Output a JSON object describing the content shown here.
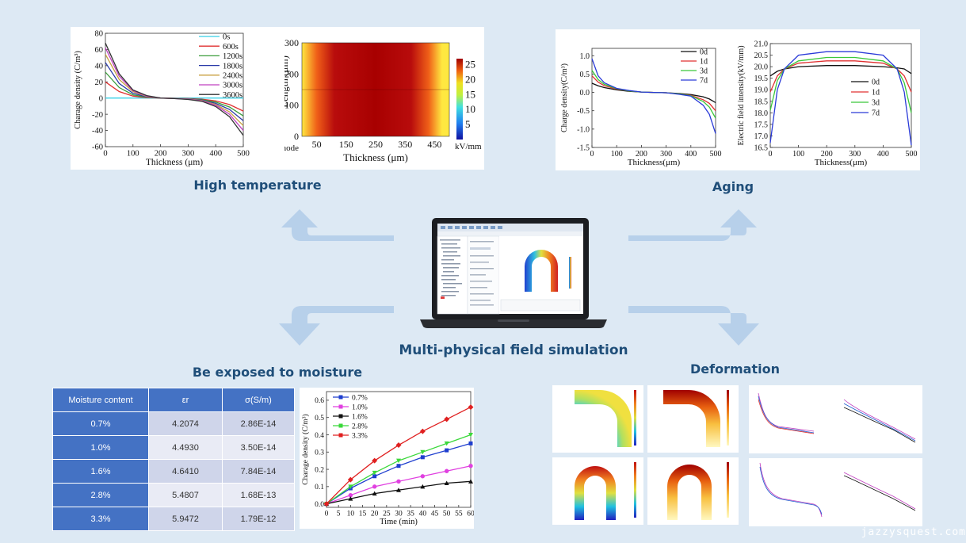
{
  "titles": {
    "high_temperature": "High temperature",
    "aging": "Aging",
    "center": "Multi-physical field simulation",
    "moisture": "Be exposed to moisture",
    "deformation": "Deformation"
  },
  "moisture_table": {
    "headers": [
      "Moisture content",
      "εr",
      "σ(S/m)"
    ],
    "rows": [
      [
        "0.7%",
        "4.2074",
        "2.86E-14"
      ],
      [
        "1.0%",
        "4.4930",
        "3.50E-14"
      ],
      [
        "1.6%",
        "4.6410",
        "7.84E-14"
      ],
      [
        "2.8%",
        "5.4807",
        "1.68E-13"
      ],
      [
        "3.3%",
        "5.9472",
        "1.79E-12"
      ]
    ]
  },
  "heatmap": {
    "ylabel": "Length (μm)",
    "xlabel": "Thickness (μm)",
    "anode_label": "Anode",
    "colorbar_unit": "kV/mm",
    "colorbar_ticks": [
      "25",
      "20",
      "15",
      "10",
      "5"
    ]
  },
  "watermark": "jazzysquest.com",
  "chart_data": [
    {
      "id": "ht_charge",
      "type": "line",
      "title": "",
      "xlabel": "Thickness (μm)",
      "ylabel": "Charage density (C/m³)",
      "xlim": [
        0,
        500
      ],
      "ylim": [
        -60,
        80
      ],
      "xticks": [
        0,
        100,
        200,
        300,
        400,
        500
      ],
      "yticks": [
        80,
        60,
        40,
        20,
        0,
        -20,
        -40,
        -60
      ],
      "series": [
        {
          "name": "0s",
          "color": "#36d0e6",
          "x": [
            0,
            500
          ],
          "y": [
            0,
            0
          ]
        },
        {
          "name": "600s",
          "color": "#e03030",
          "x": [
            0,
            50,
            100,
            150,
            200,
            250,
            300,
            350,
            400,
            450,
            500
          ],
          "y": [
            20,
            8,
            2.5,
            0.5,
            0,
            -0.3,
            -0.6,
            -1.5,
            -3.5,
            -8,
            -16
          ]
        },
        {
          "name": "1200s",
          "color": "#3a9c3a",
          "x": [
            0,
            50,
            100,
            150,
            200,
            250,
            300,
            350,
            400,
            450,
            500
          ],
          "y": [
            32,
            13,
            4,
            1,
            0,
            -0.3,
            -0.8,
            -2,
            -5,
            -11,
            -22
          ]
        },
        {
          "name": "1800s",
          "color": "#2a3aa8",
          "x": [
            0,
            50,
            100,
            150,
            200,
            250,
            300,
            350,
            400,
            450,
            500
          ],
          "y": [
            44,
            18,
            6,
            1.5,
            0,
            -0.4,
            -1,
            -2.5,
            -6.5,
            -14,
            -28
          ]
        },
        {
          "name": "2400s",
          "color": "#c8a040",
          "x": [
            0,
            50,
            100,
            150,
            200,
            250,
            300,
            350,
            400,
            450,
            500
          ],
          "y": [
            54,
            23,
            8,
            2,
            0,
            -0.5,
            -1.2,
            -3,
            -8,
            -17,
            -34
          ]
        },
        {
          "name": "3000s",
          "color": "#c040c0",
          "x": [
            0,
            50,
            100,
            150,
            200,
            250,
            300,
            350,
            400,
            450,
            500
          ],
          "y": [
            62,
            27,
            9,
            2.5,
            0,
            -0.6,
            -1.5,
            -3.5,
            -9,
            -20,
            -40
          ]
        },
        {
          "name": "3600s",
          "color": "#333333",
          "x": [
            0,
            50,
            100,
            150,
            200,
            250,
            300,
            350,
            400,
            450,
            500
          ],
          "y": [
            68,
            30,
            10,
            3,
            0,
            -0.7,
            -1.7,
            -4,
            -10.5,
            -23,
            -46
          ]
        }
      ]
    },
    {
      "id": "ht_field",
      "type": "heatmap",
      "xlabel": "Thickness (μm)",
      "ylabel": "Length (μm)",
      "xlim": [
        0,
        500
      ],
      "ylim": [
        0,
        300
      ],
      "xticks": [
        50,
        150,
        250,
        350,
        450
      ],
      "yticks": [
        0,
        100,
        200,
        300
      ],
      "colorbar_range": [
        0,
        27
      ]
    },
    {
      "id": "aging_charge",
      "type": "line",
      "xlabel": "Thickness(μm)",
      "ylabel": "Charge density(C/m³)",
      "xlim": [
        0,
        500
      ],
      "ylim": [
        -1.5,
        1.2
      ],
      "xticks": [
        0,
        100,
        200,
        300,
        400,
        500
      ],
      "yticks": [
        1.0,
        0.5,
        0.0,
        -0.5,
        -1.0,
        -1.5
      ],
      "series": [
        {
          "name": "0d",
          "color": "#111111",
          "x": [
            0,
            25,
            50,
            100,
            150,
            200,
            250,
            300,
            350,
            400,
            450,
            475,
            500
          ],
          "y": [
            0.25,
            0.18,
            0.13,
            0.07,
            0.03,
            0.01,
            0,
            -0.01,
            -0.03,
            -0.06,
            -0.12,
            -0.18,
            -0.28
          ]
        },
        {
          "name": "1d",
          "color": "#e03030",
          "x": [
            0,
            25,
            50,
            100,
            150,
            200,
            250,
            300,
            350,
            400,
            450,
            475,
            500
          ],
          "y": [
            0.45,
            0.28,
            0.18,
            0.09,
            0.04,
            0.01,
            0,
            -0.01,
            -0.04,
            -0.08,
            -0.2,
            -0.3,
            -0.5
          ]
        },
        {
          "name": "3d",
          "color": "#3ac83a",
          "x": [
            0,
            25,
            50,
            100,
            150,
            200,
            250,
            300,
            350,
            400,
            450,
            475,
            500
          ],
          "y": [
            0.6,
            0.35,
            0.22,
            0.1,
            0.04,
            0.01,
            0,
            -0.01,
            -0.04,
            -0.09,
            -0.25,
            -0.4,
            -0.7
          ]
        },
        {
          "name": "7d",
          "color": "#2a3ad8",
          "x": [
            0,
            25,
            50,
            100,
            150,
            200,
            250,
            300,
            350,
            400,
            450,
            475,
            500
          ],
          "y": [
            0.92,
            0.45,
            0.26,
            0.11,
            0.05,
            0.01,
            0,
            -0.01,
            -0.05,
            -0.1,
            -0.35,
            -0.6,
            -1.12
          ]
        }
      ]
    },
    {
      "id": "aging_field",
      "type": "line",
      "xlabel": "Thickness(μm)",
      "ylabel": "Electric field intensity(kV/mm)",
      "xlim": [
        0,
        500
      ],
      "ylim": [
        16.5,
        21.0
      ],
      "xticks": [
        0,
        100,
        200,
        300,
        400,
        500
      ],
      "yticks": [
        21.0,
        20.5,
        20.0,
        19.5,
        19.0,
        18.5,
        18.0,
        17.5,
        17.0,
        16.5
      ],
      "series": [
        {
          "name": "0d",
          "color": "#111111",
          "x": [
            0,
            25,
            50,
            100,
            200,
            300,
            400,
            450,
            475,
            500
          ],
          "y": [
            19.6,
            19.8,
            19.9,
            20.0,
            20.05,
            20.05,
            20.0,
            19.95,
            19.9,
            19.7
          ]
        },
        {
          "name": "1d",
          "color": "#e03030",
          "x": [
            0,
            25,
            50,
            100,
            200,
            300,
            400,
            450,
            475,
            500
          ],
          "y": [
            18.9,
            19.6,
            19.9,
            20.15,
            20.25,
            20.25,
            20.15,
            19.9,
            19.6,
            18.9
          ]
        },
        {
          "name": "3d",
          "color": "#3ac83a",
          "x": [
            0,
            25,
            50,
            100,
            200,
            300,
            400,
            450,
            475,
            500
          ],
          "y": [
            18.1,
            19.4,
            19.9,
            20.25,
            20.4,
            20.4,
            20.25,
            19.9,
            19.3,
            18.0
          ]
        },
        {
          "name": "7d",
          "color": "#2a3ad8",
          "x": [
            0,
            25,
            50,
            100,
            200,
            300,
            400,
            450,
            475,
            500
          ],
          "y": [
            16.7,
            19.0,
            19.9,
            20.5,
            20.65,
            20.65,
            20.5,
            19.9,
            18.9,
            16.6
          ]
        }
      ]
    },
    {
      "id": "moisture_charge",
      "type": "line",
      "xlabel": "Time (min)",
      "ylabel": "Charage density (C/m³)",
      "xlim": [
        0,
        60
      ],
      "ylim": [
        -0.02,
        0.65
      ],
      "xticks": [
        0,
        5,
        10,
        15,
        20,
        25,
        30,
        35,
        40,
        45,
        50,
        55,
        60
      ],
      "yticks": [
        0.0,
        0.1,
        0.2,
        0.3,
        0.4,
        0.5,
        0.6
      ],
      "series": [
        {
          "name": "0.7%",
          "color": "#1f3fcf",
          "marker": "square",
          "x": [
            0,
            10,
            20,
            30,
            40,
            50,
            60
          ],
          "y": [
            0,
            0.09,
            0.16,
            0.22,
            0.27,
            0.31,
            0.35
          ]
        },
        {
          "name": "1.0%",
          "color": "#e040e0",
          "marker": "circle",
          "x": [
            0,
            10,
            20,
            30,
            40,
            50,
            60
          ],
          "y": [
            0,
            0.05,
            0.1,
            0.13,
            0.16,
            0.19,
            0.22
          ]
        },
        {
          "name": "1.6%",
          "color": "#111111",
          "marker": "triangle",
          "x": [
            0,
            10,
            20,
            30,
            40,
            50,
            60
          ],
          "y": [
            0,
            0.03,
            0.06,
            0.08,
            0.1,
            0.12,
            0.13
          ]
        },
        {
          "name": "2.8%",
          "color": "#3ad83a",
          "marker": "triangle-down",
          "x": [
            0,
            10,
            20,
            30,
            40,
            50,
            60
          ],
          "y": [
            0,
            0.1,
            0.18,
            0.25,
            0.3,
            0.35,
            0.4
          ]
        },
        {
          "name": "3.3%",
          "color": "#e02020",
          "marker": "diamond",
          "x": [
            0,
            10,
            20,
            30,
            40,
            50,
            60
          ],
          "y": [
            0,
            0.14,
            0.25,
            0.34,
            0.42,
            0.49,
            0.56
          ]
        }
      ]
    }
  ]
}
